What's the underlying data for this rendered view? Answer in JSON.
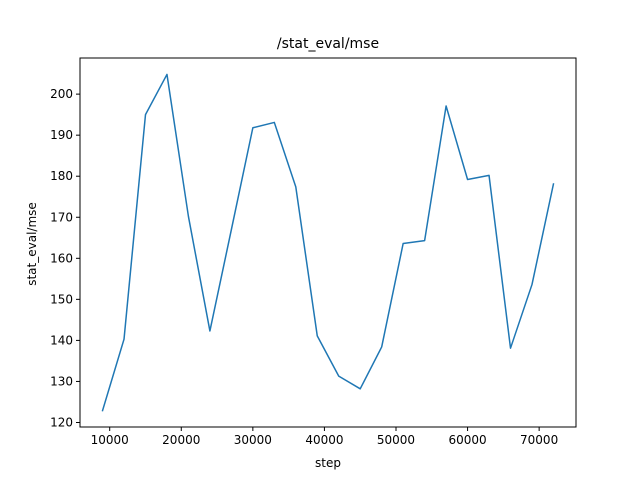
{
  "chart_data": {
    "type": "line",
    "title": "/stat_eval/mse",
    "xlabel": "step",
    "ylabel": "stat_eval/mse",
    "xlim": [
      5850,
      75150
    ],
    "ylim": [
      118.9,
      208.8
    ],
    "xticks": [
      10000,
      20000,
      30000,
      40000,
      50000,
      60000,
      70000
    ],
    "yticks": [
      120,
      130,
      140,
      150,
      160,
      170,
      180,
      190,
      200
    ],
    "grid": false,
    "series": [
      {
        "color": "#1f77b4",
        "x": [
          9000,
          12000,
          15000,
          18000,
          21000,
          24000,
          27000,
          30000,
          33000,
          36000,
          39000,
          42000,
          45000,
          48000,
          51000,
          54000,
          57000,
          60000,
          63000,
          66000,
          69000,
          72000
        ],
        "y": [
          122.9,
          140.3,
          195.0,
          204.8,
          170.2,
          142.3,
          167.0,
          191.8,
          193.1,
          177.4,
          141.1,
          131.3,
          128.2,
          138.4,
          163.6,
          164.3,
          197.1,
          179.2,
          180.2,
          138.1,
          153.6,
          178.1
        ]
      }
    ]
  }
}
